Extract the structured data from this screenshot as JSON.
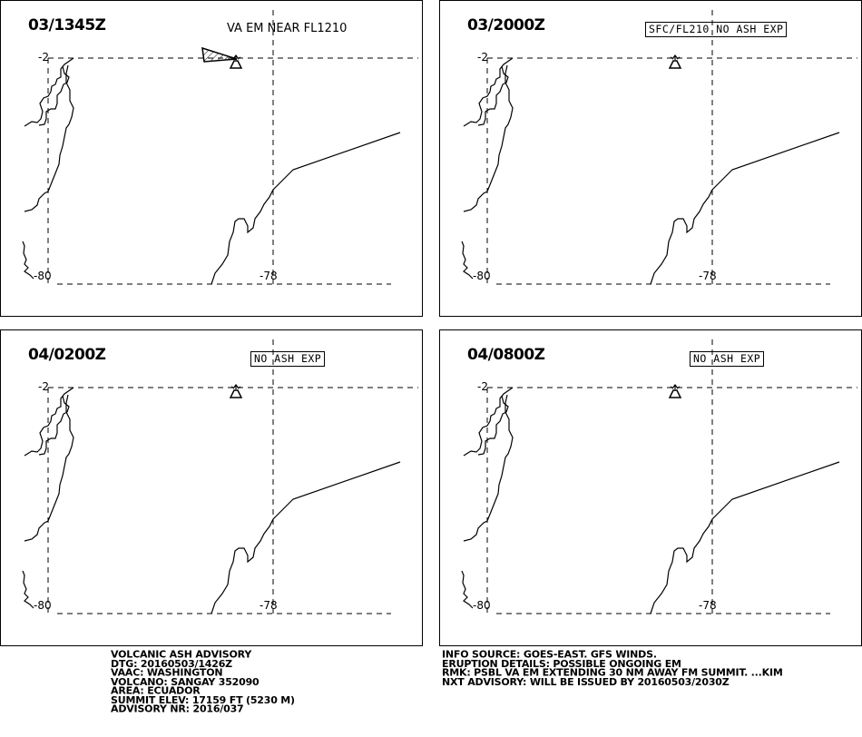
{
  "panels": [
    {
      "time": "03/1345Z",
      "note": "VA EM NEAR FL1210",
      "note_style": "plain",
      "ash_polygon": true
    },
    {
      "time": "03/2000Z",
      "note": "SFC/FL210 NO ASH EXP",
      "note_style": "boxed",
      "ash_polygon": false
    },
    {
      "time": "04/0200Z",
      "note": "NO ASH EXP",
      "note_style": "boxed",
      "ash_polygon": false
    },
    {
      "time": "04/0800Z",
      "note": "NO ASH EXP",
      "note_style": "boxed",
      "ash_polygon": false
    }
  ],
  "grid_labels": {
    "lat": "-2",
    "lon_west": "-80",
    "lon_east": "-78"
  },
  "advisory_left": [
    "VOLCANIC ASH ADVISORY",
    "DTG: 20160503/1426Z",
    "VAAC: WASHINGTON",
    "VOLCANO: SANGAY 352090",
    "AREA: ECUADOR",
    "SUMMIT ELEV: 17159 FT (5230 M)",
    "ADVISORY NR: 2016/037"
  ],
  "advisory_right": [
    "INFO SOURCE: GOES-EAST. GFS WINDS.",
    "ERUPTION DETAILS: POSSIBLE ONGOING EM",
    "RMK: PSBL VA EM EXTENDING 30 NM AWAY FM SUMMIT. ...KIM",
    "NXT ADVISORY: WILL BE ISSUED BY 20160503/2030Z"
  ],
  "colors": {
    "ink": "#000000",
    "background": "#ffffff"
  },
  "icons": {
    "volcano": "volcano-icon"
  }
}
